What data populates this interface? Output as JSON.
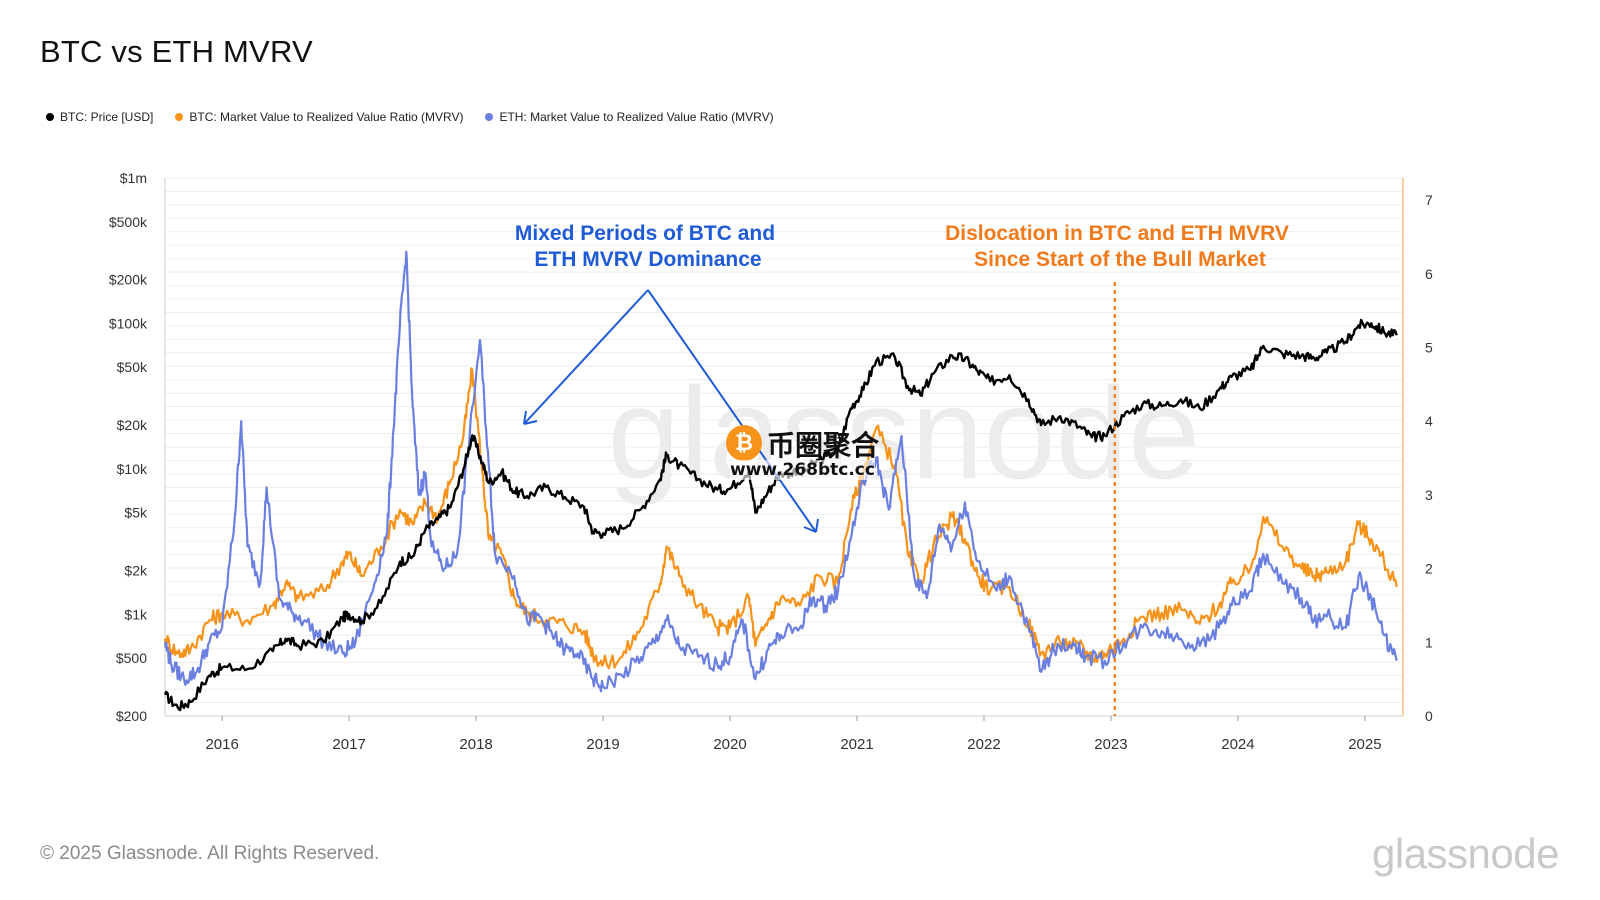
{
  "title": "BTC vs ETH MVRV",
  "footer": {
    "copyright": "© 2025 Glassnode. All Rights Reserved.",
    "logo": "glassnode"
  },
  "legend": [
    {
      "label": "BTC: Price [USD]",
      "color": "#000000"
    },
    {
      "label": "BTC: Market Value to Realized Value Ratio (MVRV)",
      "color": "#f7931a"
    },
    {
      "label": "ETH: Market Value to Realized Value Ratio (MVRV)",
      "color": "#6a7fe0"
    }
  ],
  "watermark": {
    "text": "币圈聚合",
    "url": "www.268btc.cc",
    "badge": "₿",
    "chart_watermark": "glassnode"
  },
  "chart_data": {
    "type": "line",
    "title": "BTC vs ETH MVRV",
    "x_range": [
      2015.55,
      2025.3
    ],
    "x_ticks": [
      "2016",
      "2017",
      "2018",
      "2019",
      "2020",
      "2021",
      "2022",
      "2023",
      "2024",
      "2025"
    ],
    "y_left": {
      "scale": "log",
      "range": [
        200,
        1000000
      ],
      "ticks": [
        {
          "value": 200,
          "label": "$200"
        },
        {
          "value": 500,
          "label": "$500"
        },
        {
          "value": 1000,
          "label": "$1k"
        },
        {
          "value": 2000,
          "label": "$2k"
        },
        {
          "value": 5000,
          "label": "$5k"
        },
        {
          "value": 10000,
          "label": "$10k"
        },
        {
          "value": 20000,
          "label": "$20k"
        },
        {
          "value": 50000,
          "label": "$50k"
        },
        {
          "value": 100000,
          "label": "$100k"
        },
        {
          "value": 200000,
          "label": "$200k"
        },
        {
          "value": 500000,
          "label": "$500k"
        },
        {
          "value": 1000000,
          "label": "$1m"
        }
      ]
    },
    "y_right": {
      "scale": "linear",
      "range": [
        0,
        7.3
      ],
      "ticks": [
        "0",
        "1",
        "2",
        "3",
        "4",
        "5",
        "6",
        "7"
      ]
    },
    "series": [
      {
        "name": "BTC: Price [USD]",
        "axis": "left",
        "color": "#000000",
        "points": [
          [
            2015.55,
            280
          ],
          [
            2015.65,
            230
          ],
          [
            2015.75,
            250
          ],
          [
            2015.9,
            380
          ],
          [
            2016.0,
            430
          ],
          [
            2016.2,
            420
          ],
          [
            2016.4,
            560
          ],
          [
            2016.5,
            680
          ],
          [
            2016.6,
            610
          ],
          [
            2016.8,
            650
          ],
          [
            2016.95,
            950
          ],
          [
            2017.0,
            1000
          ],
          [
            2017.1,
            900
          ],
          [
            2017.25,
            1200
          ],
          [
            2017.4,
            2300
          ],
          [
            2017.5,
            2500
          ],
          [
            2017.6,
            3800
          ],
          [
            2017.7,
            4500
          ],
          [
            2017.8,
            5500
          ],
          [
            2017.9,
            10000
          ],
          [
            2017.97,
            17000
          ],
          [
            2018.05,
            11000
          ],
          [
            2018.1,
            8000
          ],
          [
            2018.2,
            9500
          ],
          [
            2018.3,
            7000
          ],
          [
            2018.4,
            6500
          ],
          [
            2018.55,
            7500
          ],
          [
            2018.7,
            6400
          ],
          [
            2018.85,
            5500
          ],
          [
            2018.92,
            3700
          ],
          [
            2019.0,
            3600
          ],
          [
            2019.15,
            3900
          ],
          [
            2019.3,
            5300
          ],
          [
            2019.45,
            8500
          ],
          [
            2019.5,
            12500
          ],
          [
            2019.6,
            10500
          ],
          [
            2019.75,
            8500
          ],
          [
            2019.9,
            7200
          ],
          [
            2020.0,
            7300
          ],
          [
            2020.15,
            9800
          ],
          [
            2020.2,
            5000
          ],
          [
            2020.3,
            7000
          ],
          [
            2020.4,
            9500
          ],
          [
            2020.55,
            9200
          ],
          [
            2020.7,
            11500
          ],
          [
            2020.85,
            13500
          ],
          [
            2020.95,
            26000
          ],
          [
            2021.05,
            35000
          ],
          [
            2021.15,
            55000
          ],
          [
            2021.3,
            58000
          ],
          [
            2021.4,
            37000
          ],
          [
            2021.5,
            32000
          ],
          [
            2021.6,
            45000
          ],
          [
            2021.75,
            60000
          ],
          [
            2021.85,
            57000
          ],
          [
            2021.95,
            47000
          ],
          [
            2022.05,
            40000
          ],
          [
            2022.2,
            44000
          ],
          [
            2022.35,
            30000
          ],
          [
            2022.45,
            20000
          ],
          [
            2022.6,
            23000
          ],
          [
            2022.75,
            19500
          ],
          [
            2022.85,
            16500
          ],
          [
            2022.95,
            17000
          ],
          [
            2023.1,
            23000
          ],
          [
            2023.25,
            28000
          ],
          [
            2023.4,
            27000
          ],
          [
            2023.55,
            30000
          ],
          [
            2023.7,
            26000
          ],
          [
            2023.85,
            35000
          ],
          [
            2023.95,
            43000
          ],
          [
            2024.1,
            48000
          ],
          [
            2024.2,
            70000
          ],
          [
            2024.35,
            62000
          ],
          [
            2024.5,
            60000
          ],
          [
            2024.6,
            58000
          ],
          [
            2024.7,
            63000
          ],
          [
            2024.85,
            75000
          ],
          [
            2024.95,
            97000
          ],
          [
            2025.05,
            100000
          ],
          [
            2025.15,
            87000
          ],
          [
            2025.25,
            83000
          ]
        ]
      },
      {
        "name": "BTC: Market Value to Realized Value Ratio (MVRV)",
        "axis": "right",
        "color": "#f7931a",
        "points": [
          [
            2015.55,
            1.05
          ],
          [
            2015.65,
            0.85
          ],
          [
            2015.75,
            0.9
          ],
          [
            2015.9,
            1.3
          ],
          [
            2016.0,
            1.4
          ],
          [
            2016.2,
            1.3
          ],
          [
            2016.4,
            1.5
          ],
          [
            2016.5,
            1.8
          ],
          [
            2016.6,
            1.6
          ],
          [
            2016.8,
            1.7
          ],
          [
            2016.95,
            2.1
          ],
          [
            2017.0,
            2.2
          ],
          [
            2017.1,
            1.9
          ],
          [
            2017.25,
            2.3
          ],
          [
            2017.4,
            2.8
          ],
          [
            2017.5,
            2.6
          ],
          [
            2017.6,
            2.9
          ],
          [
            2017.7,
            2.7
          ],
          [
            2017.8,
            3.2
          ],
          [
            2017.9,
            3.8
          ],
          [
            2017.97,
            4.7
          ],
          [
            2018.05,
            3.3
          ],
          [
            2018.1,
            2.4
          ],
          [
            2018.2,
            2.2
          ],
          [
            2018.3,
            1.6
          ],
          [
            2018.4,
            1.4
          ],
          [
            2018.55,
            1.3
          ],
          [
            2018.7,
            1.25
          ],
          [
            2018.85,
            1.15
          ],
          [
            2018.92,
            0.85
          ],
          [
            2019.0,
            0.7
          ],
          [
            2019.15,
            0.8
          ],
          [
            2019.3,
            1.2
          ],
          [
            2019.45,
            1.8
          ],
          [
            2019.5,
            2.3
          ],
          [
            2019.6,
            1.9
          ],
          [
            2019.75,
            1.5
          ],
          [
            2019.9,
            1.2
          ],
          [
            2020.0,
            1.2
          ],
          [
            2020.15,
            1.6
          ],
          [
            2020.2,
            0.95
          ],
          [
            2020.3,
            1.3
          ],
          [
            2020.4,
            1.6
          ],
          [
            2020.55,
            1.5
          ],
          [
            2020.7,
            1.9
          ],
          [
            2020.85,
            1.8
          ],
          [
            2020.95,
            2.8
          ],
          [
            2021.05,
            3.3
          ],
          [
            2021.15,
            3.9
          ],
          [
            2021.3,
            3.4
          ],
          [
            2021.4,
            2.2
          ],
          [
            2021.5,
            1.8
          ],
          [
            2021.6,
            2.3
          ],
          [
            2021.75,
            2.7
          ],
          [
            2021.85,
            2.4
          ],
          [
            2021.95,
            1.9
          ],
          [
            2022.05,
            1.7
          ],
          [
            2022.2,
            1.75
          ],
          [
            2022.35,
            1.25
          ],
          [
            2022.45,
            0.85
          ],
          [
            2022.6,
            1.0
          ],
          [
            2022.75,
            0.95
          ],
          [
            2022.85,
            0.8
          ],
          [
            2022.95,
            0.85
          ],
          [
            2023.1,
            1.05
          ],
          [
            2023.25,
            1.35
          ],
          [
            2023.4,
            1.4
          ],
          [
            2023.55,
            1.45
          ],
          [
            2023.7,
            1.25
          ],
          [
            2023.85,
            1.5
          ],
          [
            2023.95,
            1.8
          ],
          [
            2024.1,
            2.0
          ],
          [
            2024.2,
            2.7
          ],
          [
            2024.35,
            2.3
          ],
          [
            2024.5,
            2.0
          ],
          [
            2024.6,
            1.9
          ],
          [
            2024.7,
            1.95
          ],
          [
            2024.85,
            2.1
          ],
          [
            2024.95,
            2.6
          ],
          [
            2025.05,
            2.4
          ],
          [
            2025.15,
            2.1
          ],
          [
            2025.25,
            1.75
          ]
        ]
      },
      {
        "name": "ETH: Market Value to Realized Value Ratio (MVRV)",
        "axis": "right",
        "color": "#6a7fe0",
        "points": [
          [
            2015.55,
            1.0
          ],
          [
            2015.6,
            0.7
          ],
          [
            2015.7,
            0.5
          ],
          [
            2015.8,
            0.6
          ],
          [
            2015.9,
            1.0
          ],
          [
            2016.0,
            1.2
          ],
          [
            2016.1,
            2.7
          ],
          [
            2016.15,
            4.0
          ],
          [
            2016.2,
            2.3
          ],
          [
            2016.3,
            1.8
          ],
          [
            2016.35,
            3.1
          ],
          [
            2016.45,
            1.6
          ],
          [
            2016.55,
            1.4
          ],
          [
            2016.65,
            1.3
          ],
          [
            2016.8,
            1.0
          ],
          [
            2016.95,
            0.85
          ],
          [
            2017.05,
            1.0
          ],
          [
            2017.2,
            1.8
          ],
          [
            2017.3,
            2.5
          ],
          [
            2017.35,
            3.9
          ],
          [
            2017.4,
            5.3
          ],
          [
            2017.45,
            6.3
          ],
          [
            2017.5,
            4.2
          ],
          [
            2017.55,
            3.0
          ],
          [
            2017.6,
            3.3
          ],
          [
            2017.65,
            2.3
          ],
          [
            2017.75,
            2.0
          ],
          [
            2017.85,
            2.2
          ],
          [
            2017.93,
            3.5
          ],
          [
            2018.03,
            5.1
          ],
          [
            2018.1,
            3.4
          ],
          [
            2018.15,
            2.2
          ],
          [
            2018.3,
            1.9
          ],
          [
            2018.4,
            1.3
          ],
          [
            2018.5,
            1.35
          ],
          [
            2018.6,
            1.1
          ],
          [
            2018.7,
            0.9
          ],
          [
            2018.8,
            0.85
          ],
          [
            2018.92,
            0.5
          ],
          [
            2019.0,
            0.4
          ],
          [
            2019.15,
            0.55
          ],
          [
            2019.3,
            0.8
          ],
          [
            2019.4,
            1.0
          ],
          [
            2019.5,
            1.3
          ],
          [
            2019.6,
            0.95
          ],
          [
            2019.75,
            0.8
          ],
          [
            2019.9,
            0.7
          ],
          [
            2020.0,
            0.8
          ],
          [
            2020.1,
            1.3
          ],
          [
            2020.2,
            0.5
          ],
          [
            2020.3,
            0.9
          ],
          [
            2020.4,
            1.1
          ],
          [
            2020.55,
            1.2
          ],
          [
            2020.65,
            1.6
          ],
          [
            2020.75,
            1.5
          ],
          [
            2020.85,
            1.7
          ],
          [
            2020.95,
            2.4
          ],
          [
            2021.05,
            3.2
          ],
          [
            2021.15,
            3.5
          ],
          [
            2021.25,
            2.8
          ],
          [
            2021.35,
            3.8
          ],
          [
            2021.45,
            1.9
          ],
          [
            2021.55,
            1.6
          ],
          [
            2021.65,
            2.6
          ],
          [
            2021.75,
            2.3
          ],
          [
            2021.85,
            2.9
          ],
          [
            2021.95,
            2.1
          ],
          [
            2022.1,
            1.7
          ],
          [
            2022.2,
            1.9
          ],
          [
            2022.35,
            1.2
          ],
          [
            2022.45,
            0.6
          ],
          [
            2022.55,
            0.9
          ],
          [
            2022.7,
            1.0
          ],
          [
            2022.8,
            0.8
          ],
          [
            2022.95,
            0.75
          ],
          [
            2023.1,
            1.0
          ],
          [
            2023.25,
            1.2
          ],
          [
            2023.4,
            1.15
          ],
          [
            2023.55,
            1.05
          ],
          [
            2023.7,
            0.95
          ],
          [
            2023.85,
            1.2
          ],
          [
            2023.95,
            1.5
          ],
          [
            2024.1,
            1.7
          ],
          [
            2024.2,
            2.2
          ],
          [
            2024.35,
            1.8
          ],
          [
            2024.5,
            1.6
          ],
          [
            2024.6,
            1.3
          ],
          [
            2024.7,
            1.35
          ],
          [
            2024.85,
            1.2
          ],
          [
            2024.95,
            1.9
          ],
          [
            2025.05,
            1.6
          ],
          [
            2025.15,
            1.1
          ],
          [
            2025.25,
            0.75
          ]
        ]
      }
    ],
    "annotations": [
      {
        "text": [
          "Mixed Periods of BTC and",
          "ETH MVRV Dominance"
        ],
        "color": "#1f5bd6"
      },
      {
        "text": [
          "Dislocation in BTC and ETH MVRV",
          "Since Start of the Bull Market"
        ],
        "color": "#f07a1a",
        "marker_x": 2023.0
      }
    ]
  }
}
